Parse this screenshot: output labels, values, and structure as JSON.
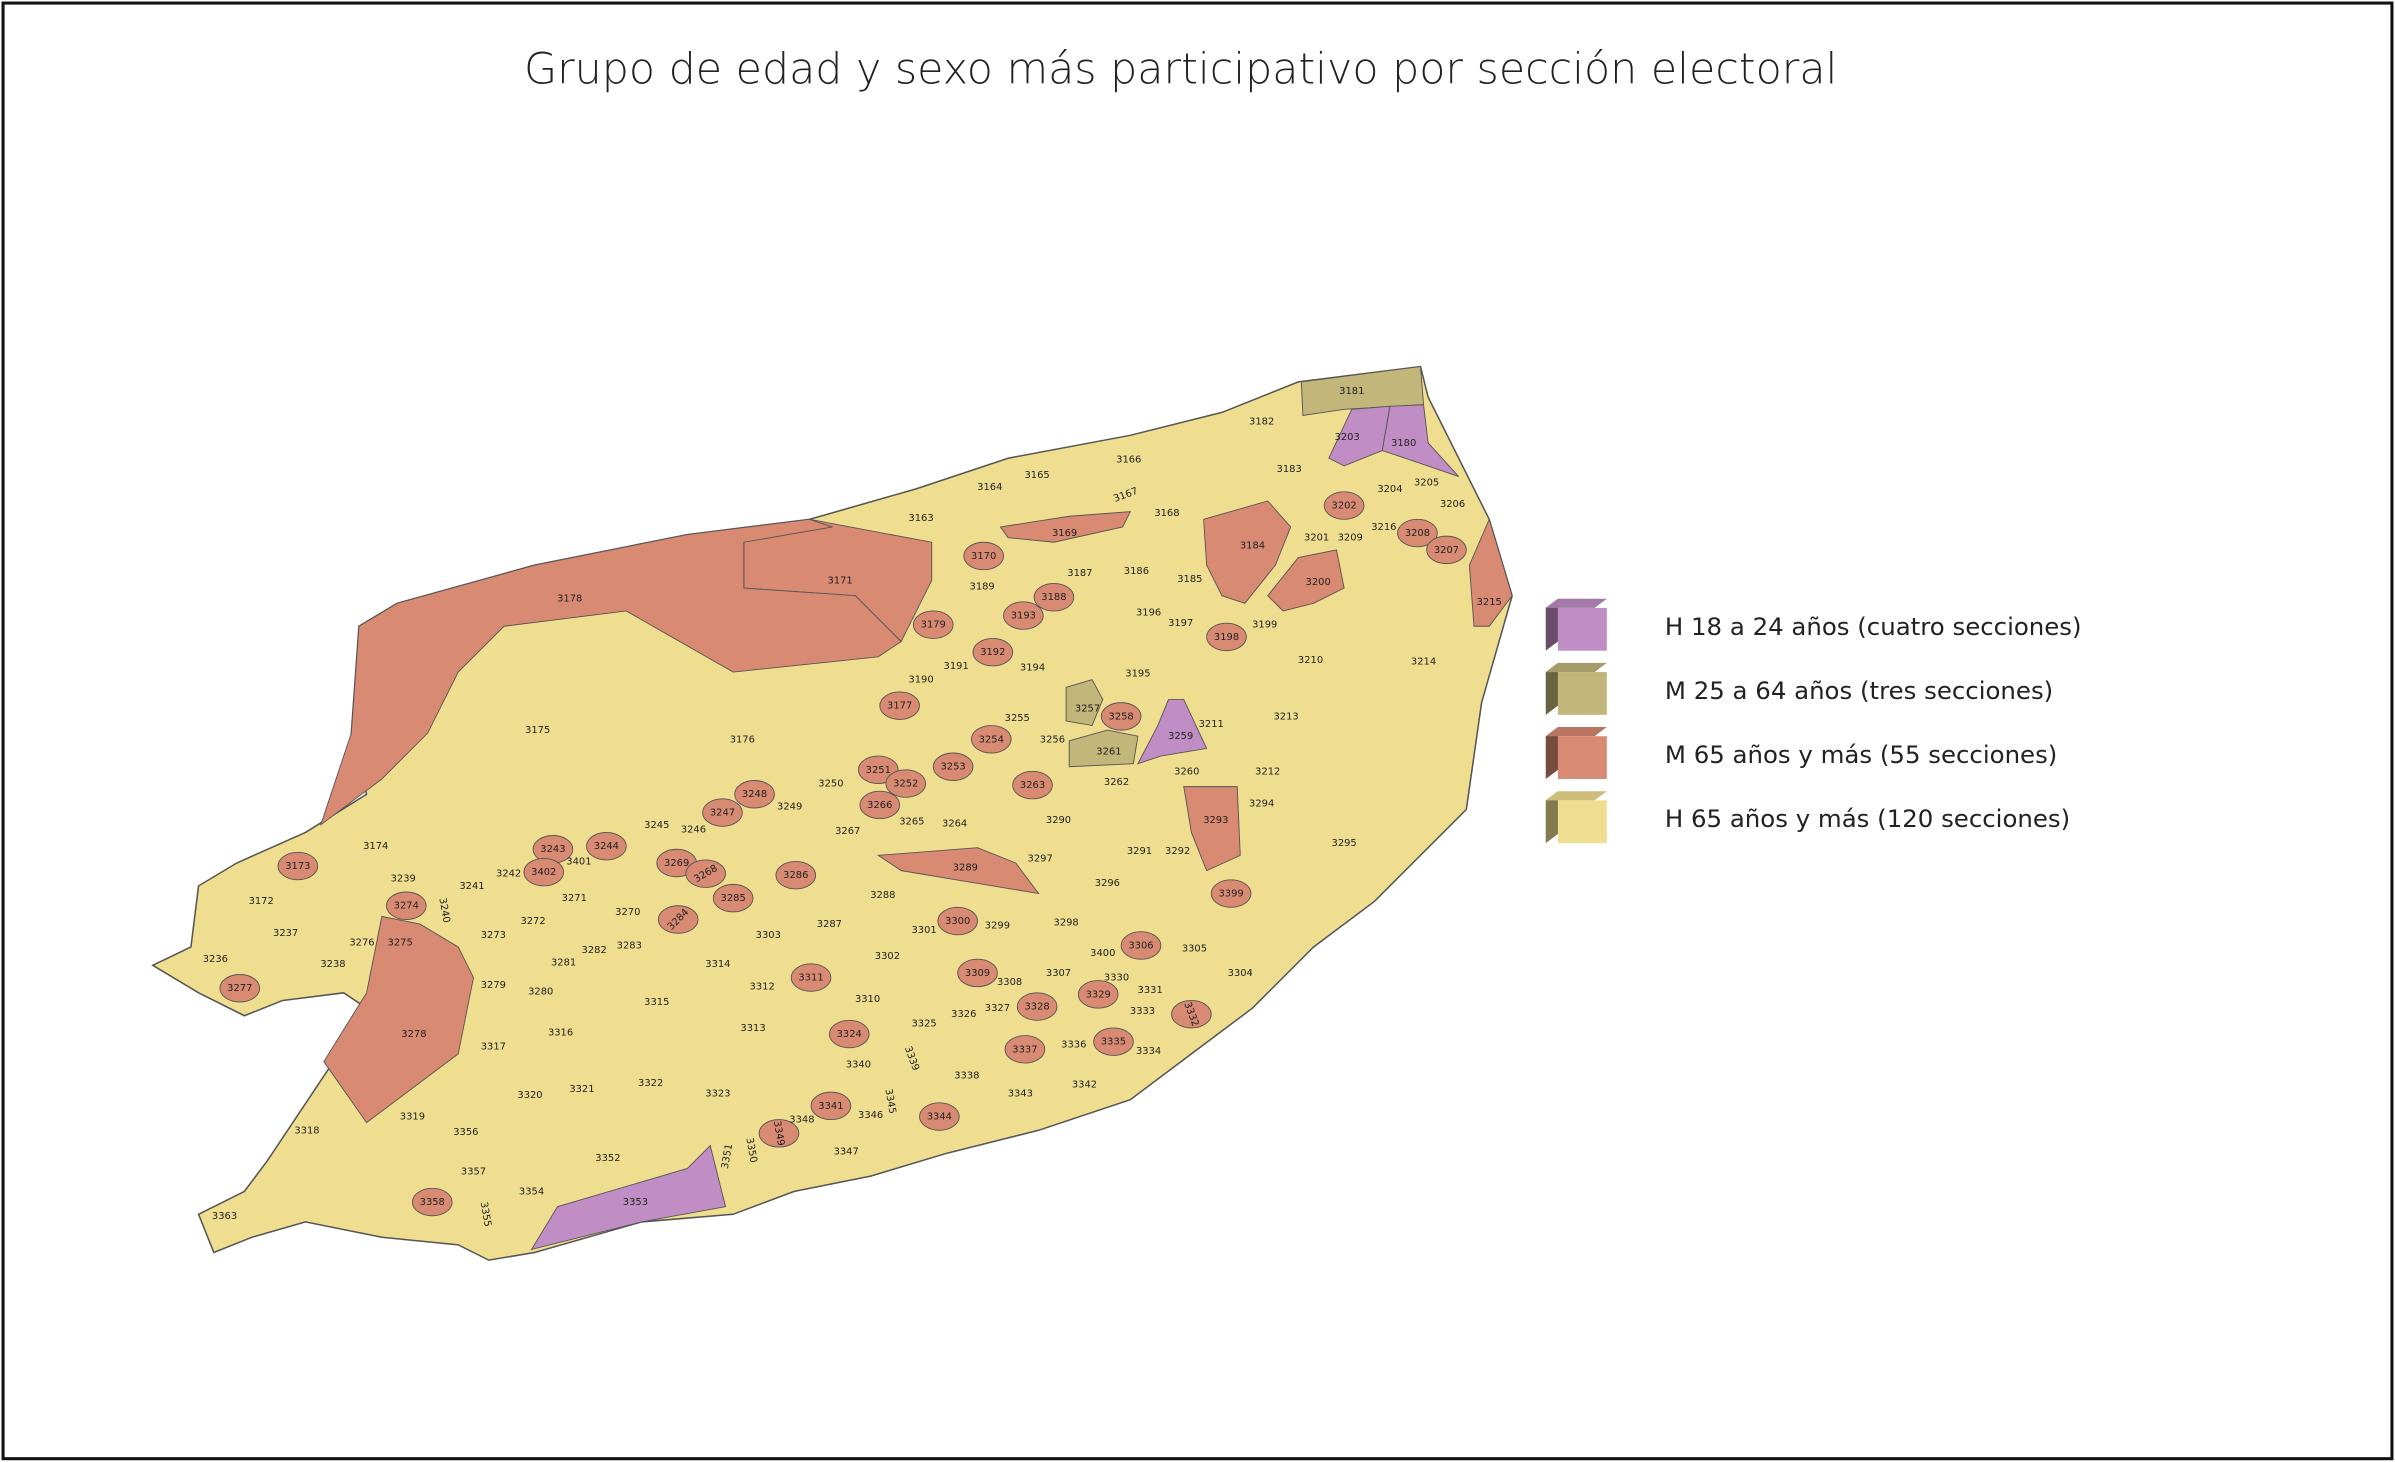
{
  "title": "Grupo de edad y sexo más participativo por sección electoral",
  "legend": [
    {
      "label": "H 18 a 24 años (cuatro secciones)",
      "color": "#c08ec4"
    },
    {
      "label": "M 25 a 64 años (tres secciones)",
      "color": "#c2b67a"
    },
    {
      "label": "M 65 años y más (55 secciones)",
      "color": "#d98a72"
    },
    {
      "label": "H 65 años y más (120 secciones)",
      "color": "#f0de90"
    }
  ],
  "sections": [
    {
      "label": "3181",
      "group": 1
    },
    {
      "label": "3182",
      "group": 3
    },
    {
      "label": "3203",
      "group": 0
    },
    {
      "label": "3180",
      "group": 0
    },
    {
      "label": "3166",
      "group": 3
    },
    {
      "label": "3183",
      "group": 3
    },
    {
      "label": "3165",
      "group": 3
    },
    {
      "label": "3164",
      "group": 3
    },
    {
      "label": "3167",
      "group": 3
    },
    {
      "label": "3204",
      "group": 3
    },
    {
      "label": "3205",
      "group": 3
    },
    {
      "label": "3202",
      "group": 2
    },
    {
      "label": "3206",
      "group": 3
    },
    {
      "label": "3163",
      "group": 3
    },
    {
      "label": "3168",
      "group": 3
    },
    {
      "label": "3169",
      "group": 2
    },
    {
      "label": "3216",
      "group": 3
    },
    {
      "label": "3208",
      "group": 2
    },
    {
      "label": "3209",
      "group": 3
    },
    {
      "label": "3201",
      "group": 3
    },
    {
      "label": "3184",
      "group": 2
    },
    {
      "label": "3207",
      "group": 2
    },
    {
      "label": "3171",
      "group": 2
    },
    {
      "label": "3170",
      "group": 2
    },
    {
      "label": "3187",
      "group": 3
    },
    {
      "label": "3186",
      "group": 3
    },
    {
      "label": "3185",
      "group": 3
    },
    {
      "label": "3200",
      "group": 2
    },
    {
      "label": "3189",
      "group": 3
    },
    {
      "label": "3188",
      "group": 2
    },
    {
      "label": "3178",
      "group": 2
    },
    {
      "label": "3215",
      "group": 2
    },
    {
      "label": "3196",
      "group": 3
    },
    {
      "label": "3179",
      "group": 2
    },
    {
      "label": "3193",
      "group": 2
    },
    {
      "label": "3197",
      "group": 3
    },
    {
      "label": "3199",
      "group": 3
    },
    {
      "label": "3198",
      "group": 2
    },
    {
      "label": "3192",
      "group": 2
    },
    {
      "label": "3191",
      "group": 3
    },
    {
      "label": "3194",
      "group": 3
    },
    {
      "label": "3195",
      "group": 3
    },
    {
      "label": "3210",
      "group": 3
    },
    {
      "label": "3214",
      "group": 3
    },
    {
      "label": "3190",
      "group": 3
    },
    {
      "label": "3177",
      "group": 2
    },
    {
      "label": "3257",
      "group": 1
    },
    {
      "label": "3258",
      "group": 2
    },
    {
      "label": "3255",
      "group": 3
    },
    {
      "label": "3211",
      "group": 3
    },
    {
      "label": "3213",
      "group": 3
    },
    {
      "label": "3175",
      "group": 3
    },
    {
      "label": "3259",
      "group": 0
    },
    {
      "label": "3176",
      "group": 3
    },
    {
      "label": "3254",
      "group": 2
    },
    {
      "label": "3256",
      "group": 3
    },
    {
      "label": "3261",
      "group": 1
    },
    {
      "label": "3253",
      "group": 2
    },
    {
      "label": "3251",
      "group": 2
    },
    {
      "label": "3260",
      "group": 3
    },
    {
      "label": "3212",
      "group": 3
    },
    {
      "label": "3252",
      "group": 2
    },
    {
      "label": "3250",
      "group": 3
    },
    {
      "label": "3263",
      "group": 2
    },
    {
      "label": "3262",
      "group": 3
    },
    {
      "label": "3248",
      "group": 2
    },
    {
      "label": "3249",
      "group": 3
    },
    {
      "label": "3266",
      "group": 2
    },
    {
      "label": "3294",
      "group": 3
    },
    {
      "label": "3247",
      "group": 2
    },
    {
      "label": "3293",
      "group": 2
    },
    {
      "label": "3295",
      "group": 3
    },
    {
      "label": "3265",
      "group": 3
    },
    {
      "label": "3264",
      "group": 3
    },
    {
      "label": "3290",
      "group": 3
    },
    {
      "label": "3245",
      "group": 3
    },
    {
      "label": "3246",
      "group": 3
    },
    {
      "label": "3267",
      "group": 3
    },
    {
      "label": "3174",
      "group": 3
    },
    {
      "label": "3244",
      "group": 2
    },
    {
      "label": "3243",
      "group": 2
    },
    {
      "label": "3291",
      "group": 3
    },
    {
      "label": "3292",
      "group": 3
    },
    {
      "label": "3401",
      "group": 3
    },
    {
      "label": "3269",
      "group": 2
    },
    {
      "label": "3297",
      "group": 3
    },
    {
      "label": "3173",
      "group": 2
    },
    {
      "label": "3286",
      "group": 2
    },
    {
      "label": "3289",
      "group": 2
    },
    {
      "label": "3242",
      "group": 3
    },
    {
      "label": "3402",
      "group": 2
    },
    {
      "label": "3268",
      "group": 2
    },
    {
      "label": "3296",
      "group": 3
    },
    {
      "label": "3239",
      "group": 3
    },
    {
      "label": "3241",
      "group": 3
    },
    {
      "label": "3399",
      "group": 2
    },
    {
      "label": "3288",
      "group": 3
    },
    {
      "label": "3271",
      "group": 3
    },
    {
      "label": "3285",
      "group": 2
    },
    {
      "label": "3172",
      "group": 3
    },
    {
      "label": "3274",
      "group": 2
    },
    {
      "label": "3240",
      "group": 3
    },
    {
      "label": "3270",
      "group": 3
    },
    {
      "label": "3284",
      "group": 2
    },
    {
      "label": "3300",
      "group": 2
    },
    {
      "label": "3287",
      "group": 3
    },
    {
      "label": "3272",
      "group": 3
    },
    {
      "label": "3298",
      "group": 3
    },
    {
      "label": "3299",
      "group": 3
    },
    {
      "label": "3301",
      "group": 3
    },
    {
      "label": "3303",
      "group": 3
    },
    {
      "label": "3237",
      "group": 3
    },
    {
      "label": "3273",
      "group": 3
    },
    {
      "label": "3276",
      "group": 3
    },
    {
      "label": "3275",
      "group": 2
    },
    {
      "label": "3283",
      "group": 3
    },
    {
      "label": "3282",
      "group": 3
    },
    {
      "label": "3306",
      "group": 2
    },
    {
      "label": "3305",
      "group": 3
    },
    {
      "label": "3302",
      "group": 3
    },
    {
      "label": "3400",
      "group": 3
    },
    {
      "label": "3236",
      "group": 3
    },
    {
      "label": "3238",
      "group": 3
    },
    {
      "label": "3281",
      "group": 3
    },
    {
      "label": "3314",
      "group": 3
    },
    {
      "label": "3304",
      "group": 3
    },
    {
      "label": "3309",
      "group": 2
    },
    {
      "label": "3307",
      "group": 3
    },
    {
      "label": "3330",
      "group": 3
    },
    {
      "label": "3308",
      "group": 3
    },
    {
      "label": "3311",
      "group": 2
    },
    {
      "label": "3277",
      "group": 2
    },
    {
      "label": "3279",
      "group": 3
    },
    {
      "label": "3312",
      "group": 3
    },
    {
      "label": "3280",
      "group": 3
    },
    {
      "label": "3331",
      "group": 3
    },
    {
      "label": "3329",
      "group": 2
    },
    {
      "label": "3310",
      "group": 3
    },
    {
      "label": "3315",
      "group": 3
    },
    {
      "label": "3327",
      "group": 3
    },
    {
      "label": "3328",
      "group": 2
    },
    {
      "label": "3333",
      "group": 3
    },
    {
      "label": "3332",
      "group": 2
    },
    {
      "label": "3326",
      "group": 3
    },
    {
      "label": "3325",
      "group": 3
    },
    {
      "label": "3313",
      "group": 3
    },
    {
      "label": "3316",
      "group": 3
    },
    {
      "label": "3278",
      "group": 2
    },
    {
      "label": "3324",
      "group": 2
    },
    {
      "label": "3335",
      "group": 2
    },
    {
      "label": "3337",
      "group": 2
    },
    {
      "label": "3336",
      "group": 3
    },
    {
      "label": "3317",
      "group": 3
    },
    {
      "label": "3334",
      "group": 3
    },
    {
      "label": "3339",
      "group": 3
    },
    {
      "label": "3340",
      "group": 3
    },
    {
      "label": "3338",
      "group": 3
    },
    {
      "label": "3322",
      "group": 3
    },
    {
      "label": "3342",
      "group": 3
    },
    {
      "label": "3321",
      "group": 3
    },
    {
      "label": "3343",
      "group": 3
    },
    {
      "label": "3320",
      "group": 3
    },
    {
      "label": "3323",
      "group": 3
    },
    {
      "label": "3345",
      "group": 3
    },
    {
      "label": "3341",
      "group": 2
    },
    {
      "label": "3346",
      "group": 3
    },
    {
      "label": "3319",
      "group": 3
    },
    {
      "label": "3344",
      "group": 2
    },
    {
      "label": "3348",
      "group": 3
    },
    {
      "label": "3318",
      "group": 3
    },
    {
      "label": "3356",
      "group": 3
    },
    {
      "label": "3349",
      "group": 2
    },
    {
      "label": "3350",
      "group": 3
    },
    {
      "label": "3347",
      "group": 3
    },
    {
      "label": "3351",
      "group": 3
    },
    {
      "label": "3352",
      "group": 3
    },
    {
      "label": "3357",
      "group": 3
    },
    {
      "label": "3354",
      "group": 3
    },
    {
      "label": "3358",
      "group": 2
    },
    {
      "label": "3353",
      "group": 0
    },
    {
      "label": "3355",
      "group": 3
    },
    {
      "label": "3363",
      "group": 3
    }
  ]
}
